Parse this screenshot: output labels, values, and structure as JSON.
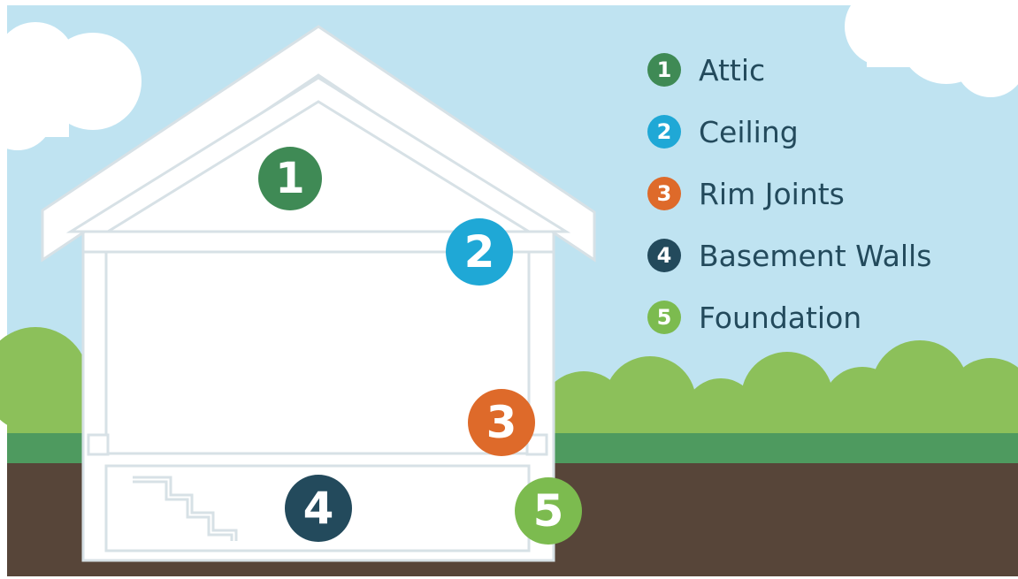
{
  "legend": {
    "items": [
      {
        "number": "1",
        "label": "Attic",
        "color": "#3f8a55"
      },
      {
        "number": "2",
        "label": "Ceiling",
        "color": "#1fa8d6"
      },
      {
        "number": "3",
        "label": "Rim Joints",
        "color": "#de6a2a"
      },
      {
        "number": "4",
        "label": "Basement Walls",
        "color": "#234a5c"
      },
      {
        "number": "5",
        "label": "Foundation",
        "color": "#7cbb4f"
      }
    ]
  },
  "colors": {
    "sky": "#bfe3f1",
    "cloud": "#ffffff",
    "bushes": "#8cc05a",
    "grass": "#4e9a5f",
    "soil": "#574539",
    "house_outline": "#d7e1e6",
    "house_fill": "#ffffff"
  }
}
